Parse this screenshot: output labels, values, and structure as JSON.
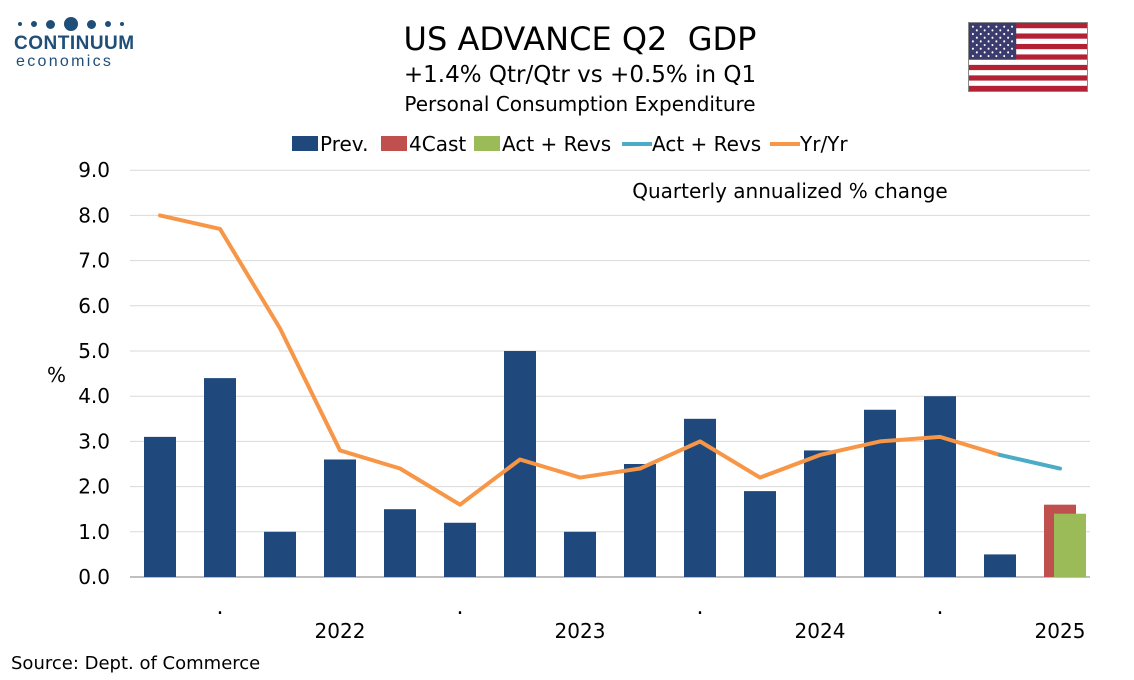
{
  "logo": {
    "name": "CONTINUUM",
    "sub": "economics"
  },
  "header": {
    "title": "US ADVANCE Q2  GDP",
    "subtitle": "+1.4% Qtr/Qtr vs +0.5% in Q1",
    "subtitle2": "Personal Consumption Expenditure"
  },
  "source": "Source: Dept. of Commerce",
  "colors": {
    "prev": "#1f497d",
    "forecast": "#c0504d",
    "actual_bar": "#9bbb59",
    "actual_line": "#4bacc6",
    "yoy": "#f79646"
  },
  "chart_data": {
    "type": "bar",
    "title": "US ADVANCE Q2  GDP",
    "subtitle": "+1.4% Qtr/Qtr vs +0.5% in Q1",
    "ylabel": "%",
    "annotation": "Quarterly annualized % change",
    "ylim": [
      0,
      9
    ],
    "yticks": [
      "0.0",
      "1.0",
      "2.0",
      "3.0",
      "4.0",
      "5.0",
      "6.0",
      "7.0",
      "8.0",
      "9.0"
    ],
    "grid": true,
    "legend_position": "top",
    "x_labels": [
      {
        "label": ".",
        "slot": 1.5
      },
      {
        "label": "2022",
        "slot": 3.5
      },
      {
        "label": ".",
        "slot": 5.5
      },
      {
        "label": "2023",
        "slot": 7.5
      },
      {
        "label": ".",
        "slot": 9.5
      },
      {
        "label": "2024",
        "slot": 11.5
      },
      {
        "label": ".",
        "slot": 13.5
      },
      {
        "label": "2025",
        "slot": 15.5
      }
    ],
    "legend": [
      "Prev.",
      "4Cast",
      "Act + Revs",
      "Act + Revs",
      "Yr/Yr"
    ],
    "series": [
      {
        "name": "Prev.",
        "kind": "bar",
        "values": [
          3.1,
          4.4,
          1.0,
          2.6,
          1.5,
          1.2,
          5.0,
          1.0,
          2.5,
          3.5,
          1.9,
          2.8,
          3.7,
          4.0,
          0.5,
          null
        ]
      },
      {
        "name": "4Cast",
        "kind": "bar",
        "values": [
          null,
          null,
          null,
          null,
          null,
          null,
          null,
          null,
          null,
          null,
          null,
          null,
          null,
          null,
          null,
          1.6
        ]
      },
      {
        "name": "Act + Revs",
        "kind": "bar",
        "values": [
          null,
          null,
          null,
          null,
          null,
          null,
          null,
          null,
          null,
          null,
          null,
          null,
          null,
          null,
          null,
          1.4
        ]
      },
      {
        "name": "Act + Revs",
        "kind": "line",
        "values": [
          null,
          null,
          null,
          null,
          null,
          null,
          null,
          null,
          null,
          null,
          null,
          null,
          null,
          null,
          2.7,
          2.4
        ]
      },
      {
        "name": "Yr/Yr",
        "kind": "line",
        "values": [
          8.0,
          7.7,
          5.5,
          2.8,
          2.4,
          1.6,
          2.6,
          2.2,
          2.4,
          3.0,
          2.2,
          2.7,
          3.0,
          3.1,
          2.7,
          null
        ]
      }
    ]
  }
}
